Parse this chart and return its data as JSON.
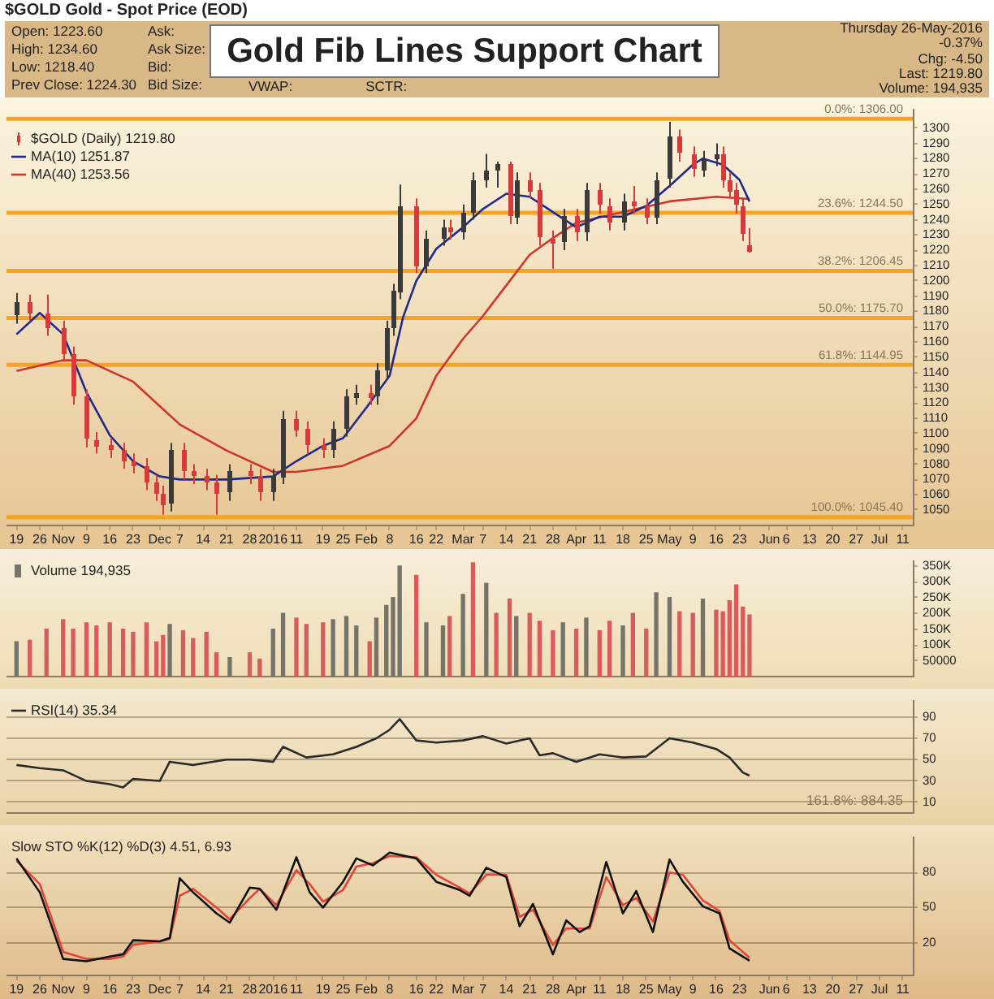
{
  "chart_data": [
    {
      "type": "candlestick",
      "title": "Gold Fib Lines Support Chart",
      "subtitle": "$GOLD Gold - Spot Price (EOD)",
      "annotations": [
        "Open: 1223.60",
        "High: 1234.60",
        "Low: 1218.40",
        "Prev Close: 1224.30",
        "Ask:",
        "Ask Size:",
        "Bid:",
        "Bid Size:",
        "VWAP:",
        "SCTR:",
        "Thursday 26-May-2016",
        "-0.37%",
        "Chg: -4.50",
        "Last: 1219.80",
        "Volume: 194,935"
      ],
      "series": [
        {
          "name": "$GOLD (Daily) 1219.80",
          "color": "#d63a3a",
          "colors": [
            "#3a3a3a",
            "#d63a3a",
            "#d63a3a",
            "#d63a3a",
            "#d63a3a",
            "#d63a3a",
            "#d63a3a",
            "#d63a3a",
            "#d63a3a",
            "#d63a3a",
            "#d63a3a",
            "#d63a3a",
            "#d63a3a",
            "#3a3a3a",
            "#d63a3a",
            "#d63a3a",
            "#d63a3a",
            "#d63a3a",
            "#3a3a3a",
            "#d63a3a",
            "#d63a3a",
            "#3a3a3a",
            "#3a3a3a",
            "#d63a3a",
            "#d63a3a",
            "#d63a3a",
            "#3a3a3a",
            "#3a3a3a",
            "#3a3a3a",
            "#d63a3a",
            "#3a3a3a",
            "#3a3a3a",
            "#3a3a3a",
            "#3a3a3a",
            "#d63a3a",
            "#3a3a3a",
            "#3a3a3a",
            "#d63a3a",
            "#3a3a3a",
            "#3a3a3a",
            "#3a3a3a",
            "#3a3a3a",
            "#d63a3a",
            "#3a3a3a",
            "#d63a3a",
            "#d63a3a",
            "#d63a3a",
            "#3a3a3a",
            "#d63a3a",
            "#3a3a3a",
            "#d63a3a",
            "#d63a3a",
            "#3a3a3a",
            "#d63a3a",
            "#d63a3a",
            "#3a3a3a",
            "#3a3a3a",
            "#d63a3a",
            "#d63a3a",
            "#3a3a3a",
            "#3a3a3a",
            "#d63a3a",
            "#d63a3a",
            "#d63a3a",
            "#d63a3a",
            "#d63a3a"
          ],
          "x": [
            "2015-10-19",
            "2015-10-23",
            "2015-10-28",
            "2015-11-02",
            "2015-11-05",
            "2015-11-09",
            "2015-11-12",
            "2015-11-16",
            "2015-11-20",
            "2015-11-23",
            "2015-11-27",
            "2015-11-30",
            "2015-12-02",
            "2015-12-04",
            "2015-12-08",
            "2015-12-11",
            "2015-12-15",
            "2015-12-18",
            "2015-12-22",
            "2015-12-28",
            "2015-12-31",
            "2016-01-04",
            "2016-01-07",
            "2016-01-11",
            "2016-01-14",
            "2016-01-19",
            "2016-01-22",
            "2016-01-26",
            "2016-01-29",
            "2016-02-02",
            "2016-02-04",
            "2016-02-07",
            "2016-02-09",
            "2016-02-11",
            "2016-02-16",
            "2016-02-19",
            "2016-02-24",
            "2016-02-26",
            "2016-03-01",
            "2016-03-04",
            "2016-03-08",
            "2016-03-11",
            "2016-03-15",
            "2016-03-17",
            "2016-03-21",
            "2016-03-24",
            "2016-03-28",
            "2016-03-31",
            "2016-04-04",
            "2016-04-07",
            "2016-04-11",
            "2016-04-14",
            "2016-04-18",
            "2016-04-21",
            "2016-04-25",
            "2016-04-28",
            "2016-05-02",
            "2016-05-05",
            "2016-05-09",
            "2016-05-12",
            "2016-05-16",
            "2016-05-18",
            "2016-05-20",
            "2016-05-22",
            "2016-05-24",
            "2016-05-26"
          ],
          "ohlc": [
            [
              1178,
              1192,
              1172,
              1186
            ],
            [
              1186,
              1191,
              1174,
              1179
            ],
            [
              1179,
              1191,
              1164,
              1169
            ],
            [
              1169,
              1174,
              1147,
              1152
            ],
            [
              1152,
              1157,
              1119,
              1124
            ],
            [
              1124,
              1129,
              1091,
              1096
            ],
            [
              1096,
              1101,
              1087,
              1092
            ],
            [
              1092,
              1097,
              1084,
              1089
            ],
            [
              1089,
              1094,
              1077,
              1082
            ],
            [
              1082,
              1087,
              1074,
              1079
            ],
            [
              1079,
              1084,
              1063,
              1068
            ],
            [
              1068,
              1073,
              1056,
              1061
            ],
            [
              1061,
              1066,
              1047,
              1054
            ],
            [
              1054,
              1094,
              1049,
              1089
            ],
            [
              1089,
              1094,
              1070,
              1075
            ],
            [
              1075,
              1080,
              1067,
              1072
            ],
            [
              1072,
              1077,
              1063,
              1068
            ],
            [
              1068,
              1073,
              1047,
              1061
            ],
            [
              1061,
              1080,
              1056,
              1075
            ],
            [
              1075,
              1080,
              1067,
              1072
            ],
            [
              1072,
              1077,
              1056,
              1061
            ],
            [
              1061,
              1077,
              1056,
              1072
            ],
            [
              1072,
              1115,
              1067,
              1110
            ],
            [
              1110,
              1115,
              1098,
              1103
            ],
            [
              1103,
              1108,
              1087,
              1092
            ],
            [
              1092,
              1097,
              1084,
              1089
            ],
            [
              1089,
              1108,
              1084,
              1103
            ],
            [
              1103,
              1129,
              1098,
              1124
            ],
            [
              1124,
              1132,
              1119,
              1127
            ],
            [
              1127,
              1132,
              1119,
              1124
            ],
            [
              1124,
              1146,
              1119,
              1141
            ],
            [
              1141,
              1174,
              1136,
              1169
            ],
            [
              1169,
              1198,
              1164,
              1193
            ],
            [
              1193,
              1263,
              1188,
              1249
            ],
            [
              1249,
              1254,
              1205,
              1210
            ],
            [
              1210,
              1233,
              1205,
              1228
            ],
            [
              1228,
              1240,
              1223,
              1235
            ],
            [
              1235,
              1240,
              1227,
              1232
            ],
            [
              1232,
              1250,
              1227,
              1245
            ],
            [
              1245,
              1271,
              1240,
              1266
            ],
            [
              1266,
              1283,
              1261,
              1272
            ],
            [
              1272,
              1278,
              1261,
              1276
            ],
            [
              1276,
              1278,
              1237,
              1242
            ],
            [
              1242,
              1271,
              1237,
              1266
            ],
            [
              1266,
              1271,
              1254,
              1259
            ],
            [
              1259,
              1264,
              1223,
              1228
            ],
            [
              1228,
              1233,
              1208,
              1225
            ],
            [
              1225,
              1247,
              1220,
              1242
            ],
            [
              1242,
              1247,
              1226,
              1231
            ],
            [
              1231,
              1264,
              1226,
              1259
            ],
            [
              1259,
              1264,
              1244,
              1249
            ],
            [
              1249,
              1254,
              1233,
              1238
            ],
            [
              1238,
              1257,
              1233,
              1252
            ],
            [
              1252,
              1262,
              1244,
              1249
            ],
            [
              1249,
              1254,
              1237,
              1242
            ],
            [
              1242,
              1271,
              1237,
              1266
            ],
            [
              1266,
              1304,
              1261,
              1294
            ],
            [
              1294,
              1299,
              1278,
              1283
            ],
            [
              1283,
              1288,
              1268,
              1273
            ],
            [
              1273,
              1285,
              1268,
              1280
            ],
            [
              1280,
              1290,
              1275,
              1283
            ],
            [
              1283,
              1288,
              1261,
              1266
            ],
            [
              1266,
              1271,
              1254,
              1259
            ],
            [
              1259,
              1264,
              1244,
              1249
            ],
            [
              1249,
              1254,
              1226,
              1231
            ],
            [
              1223.6,
              1234.6,
              1218.4,
              1219.8
            ]
          ]
        },
        {
          "type": "line",
          "name": "MA(10) 1251.87",
          "color": "#1f2a8a",
          "x": [
            "2015-10-19",
            "2015-10-26",
            "2015-11-02",
            "2015-11-09",
            "2015-11-16",
            "2015-11-23",
            "2015-12-01",
            "2015-12-07",
            "2015-12-21",
            "2016-01-04",
            "2016-01-11",
            "2016-01-19",
            "2016-01-25",
            "2016-02-01",
            "2016-02-08",
            "2016-02-12",
            "2016-02-16",
            "2016-02-22",
            "2016-03-01",
            "2016-03-07",
            "2016-03-14",
            "2016-03-21",
            "2016-03-28",
            "2016-04-04",
            "2016-04-11",
            "2016-04-18",
            "2016-04-25",
            "2016-05-02",
            "2016-05-09",
            "2016-05-12",
            "2016-05-18",
            "2016-05-23",
            "2016-05-26"
          ],
          "values": [
            1165,
            1179,
            1165,
            1127,
            1099,
            1082,
            1072,
            1070,
            1070,
            1072,
            1082,
            1092,
            1097,
            1117,
            1138,
            1176,
            1200,
            1221,
            1235,
            1247,
            1257,
            1255,
            1245,
            1235,
            1242,
            1242,
            1249,
            1262,
            1276,
            1280,
            1276,
            1266,
            1251.87
          ]
        },
        {
          "type": "line",
          "name": "MA(40) 1253.56",
          "color": "#d0352b",
          "x": [
            "2015-10-19",
            "2015-11-02",
            "2015-11-09",
            "2015-11-23",
            "2015-12-07",
            "2015-12-21",
            "2016-01-04",
            "2016-01-11",
            "2016-01-25",
            "2016-02-08",
            "2016-02-16",
            "2016-02-22",
            "2016-03-01",
            "2016-03-07",
            "2016-03-14",
            "2016-03-21",
            "2016-03-28",
            "2016-04-04",
            "2016-04-18",
            "2016-05-02",
            "2016-05-16",
            "2016-05-26"
          ],
          "values": [
            1141,
            1148,
            1148,
            1134,
            1106,
            1089,
            1075,
            1075,
            1079,
            1092,
            1110,
            1138,
            1162,
            1177,
            1197,
            1217,
            1228,
            1238,
            1245,
            1252,
            1255,
            1253.56
          ]
        }
      ],
      "xlim": [
        "2015-10-16",
        "2016-07-14"
      ],
      "xticks": [
        {
          "value": "2015-10-19",
          "label": "19"
        },
        {
          "value": "2015-10-26",
          "label": "26"
        },
        {
          "value": "2015-11-02",
          "label": "Nov"
        },
        {
          "value": "2015-11-09",
          "label": "9"
        },
        {
          "value": "2015-11-16",
          "label": "16"
        },
        {
          "value": "2015-11-23",
          "label": "23"
        },
        {
          "value": "2015-12-01",
          "label": "Dec"
        },
        {
          "value": "2015-12-07",
          "label": "7"
        },
        {
          "value": "2015-12-14",
          "label": "14"
        },
        {
          "value": "2015-12-21",
          "label": "21"
        },
        {
          "value": "2015-12-28",
          "label": "28"
        },
        {
          "value": "2016-01-04",
          "label": "2016"
        },
        {
          "value": "2016-01-11",
          "label": "11"
        },
        {
          "value": "2016-01-19",
          "label": "19"
        },
        {
          "value": "2016-01-25",
          "label": "25"
        },
        {
          "value": "2016-02-01",
          "label": "Feb"
        },
        {
          "value": "2016-02-08",
          "label": "8"
        },
        {
          "value": "2016-02-16",
          "label": "16"
        },
        {
          "value": "2016-02-22",
          "label": "22"
        },
        {
          "value": "2016-03-01",
          "label": "Mar"
        },
        {
          "value": "2016-03-07",
          "label": "7"
        },
        {
          "value": "2016-03-14",
          "label": "14"
        },
        {
          "value": "2016-03-21",
          "label": "21"
        },
        {
          "value": "2016-03-28",
          "label": "28"
        },
        {
          "value": "2016-04-04",
          "label": "Apr"
        },
        {
          "value": "2016-04-11",
          "label": "11"
        },
        {
          "value": "2016-04-18",
          "label": "18"
        },
        {
          "value": "2016-04-25",
          "label": "25"
        },
        {
          "value": "2016-05-02",
          "label": "May"
        },
        {
          "value": "2016-05-09",
          "label": "9"
        },
        {
          "value": "2016-05-16",
          "label": "16"
        },
        {
          "value": "2016-05-23",
          "label": "23"
        },
        {
          "value": "2016-06-01",
          "label": "Jun"
        },
        {
          "value": "2016-06-06",
          "label": "6"
        },
        {
          "value": "2016-06-13",
          "label": "13"
        },
        {
          "value": "2016-06-20",
          "label": "20"
        },
        {
          "value": "2016-06-27",
          "label": "27"
        },
        {
          "value": "2016-07-04",
          "label": "Jul"
        },
        {
          "value": "2016-07-11",
          "label": "11"
        }
      ],
      "ylim": [
        1040,
        1312
      ],
      "yticks": [
        1050,
        1060,
        1070,
        1080,
        1090,
        1100,
        1110,
        1120,
        1130,
        1140,
        1150,
        1160,
        1170,
        1180,
        1190,
        1200,
        1210,
        1220,
        1230,
        1240,
        1250,
        1260,
        1270,
        1280,
        1290,
        1300
      ],
      "ref_lines": [
        {
          "axis": "y",
          "value": 1306,
          "label": "0.0%: 1306.00",
          "color": "#f5a423"
        },
        {
          "axis": "y",
          "value": 1244.5,
          "label": "23.6%: 1244.50",
          "color": "#f5a423"
        },
        {
          "axis": "y",
          "value": 1206.45,
          "label": "38.2%: 1206.45",
          "color": "#f5a423"
        },
        {
          "axis": "y",
          "value": 1175.7,
          "label": "50.0%: 1175.70",
          "color": "#f5a423"
        },
        {
          "axis": "y",
          "value": 1144.95,
          "label": "61.8%: 1144.95",
          "color": "#f5a423"
        },
        {
          "axis": "y",
          "value": 1045.4,
          "label": "100.0%: 1045.40",
          "color": "#f5a423"
        }
      ],
      "legend": "top left",
      "tick_labels": "xy"
    },
    {
      "type": "bar",
      "series": [
        {
          "name": "Volume 194,935",
          "color": "#767468",
          "x": [
            "2015-10-19",
            "2015-10-23",
            "2015-10-28",
            "2015-11-02",
            "2015-11-05",
            "2015-11-09",
            "2015-11-12",
            "2015-11-16",
            "2015-11-20",
            "2015-11-23",
            "2015-11-27",
            "2015-11-30",
            "2015-12-02",
            "2015-12-04",
            "2015-12-08",
            "2015-12-11",
            "2015-12-15",
            "2015-12-18",
            "2015-12-22",
            "2015-12-28",
            "2015-12-31",
            "2016-01-04",
            "2016-01-07",
            "2016-01-11",
            "2016-01-14",
            "2016-01-19",
            "2016-01-22",
            "2016-01-26",
            "2016-01-29",
            "2016-02-02",
            "2016-02-04",
            "2016-02-07",
            "2016-02-09",
            "2016-02-11",
            "2016-02-16",
            "2016-02-19",
            "2016-02-24",
            "2016-02-26",
            "2016-03-01",
            "2016-03-04",
            "2016-03-08",
            "2016-03-11",
            "2016-03-15",
            "2016-03-17",
            "2016-03-21",
            "2016-03-24",
            "2016-03-28",
            "2016-03-31",
            "2016-04-04",
            "2016-04-07",
            "2016-04-11",
            "2016-04-14",
            "2016-04-18",
            "2016-04-21",
            "2016-04-25",
            "2016-04-28",
            "2016-05-02",
            "2016-05-05",
            "2016-05-09",
            "2016-05-12",
            "2016-05-16",
            "2016-05-18",
            "2016-05-20",
            "2016-05-22",
            "2016-05-24",
            "2016-05-26"
          ],
          "values": [
            110000,
            115000,
            150000,
            180000,
            150000,
            170000,
            160000,
            170000,
            150000,
            140000,
            170000,
            110000,
            130000,
            165000,
            145000,
            120000,
            140000,
            75000,
            60000,
            75000,
            55000,
            150000,
            200000,
            185000,
            165000,
            170000,
            180000,
            190000,
            160000,
            110000,
            185000,
            225000,
            250000,
            350000,
            320000,
            170000,
            160000,
            190000,
            260000,
            360000,
            295000,
            200000,
            245000,
            190000,
            200000,
            175000,
            145000,
            170000,
            150000,
            185000,
            145000,
            175000,
            160000,
            200000,
            150000,
            265000,
            250000,
            205000,
            200000,
            245000,
            210000,
            205000,
            240000,
            290000,
            220000,
            195000
          ],
          "colors": [
            "#767468",
            "#d85c5c",
            "#d85c5c",
            "#d85c5c",
            "#d85c5c",
            "#d85c5c",
            "#d85c5c",
            "#d85c5c",
            "#d85c5c",
            "#d85c5c",
            "#d85c5c",
            "#d85c5c",
            "#d85c5c",
            "#767468",
            "#d85c5c",
            "#d85c5c",
            "#d85c5c",
            "#d85c5c",
            "#767468",
            "#d85c5c",
            "#d85c5c",
            "#767468",
            "#767468",
            "#d85c5c",
            "#d85c5c",
            "#d85c5c",
            "#767468",
            "#767468",
            "#767468",
            "#d85c5c",
            "#767468",
            "#767468",
            "#767468",
            "#767468",
            "#d85c5c",
            "#767468",
            "#767468",
            "#d85c5c",
            "#767468",
            "#d85c5c",
            "#767468",
            "#d85c5c",
            "#d85c5c",
            "#767468",
            "#d85c5c",
            "#d85c5c",
            "#d85c5c",
            "#767468",
            "#d85c5c",
            "#767468",
            "#d85c5c",
            "#d85c5c",
            "#767468",
            "#d85c5c",
            "#d85c5c",
            "#767468",
            "#767468",
            "#d85c5c",
            "#d85c5c",
            "#767468",
            "#d85c5c",
            "#d85c5c",
            "#d85c5c",
            "#d85c5c",
            "#d85c5c",
            "#d85c5c"
          ]
        }
      ],
      "xlim": [
        "2015-10-16",
        "2016-07-14"
      ],
      "ylim": [
        0,
        365000
      ],
      "yticks": [
        {
          "value": 50000,
          "label": "50000"
        },
        {
          "value": 100000,
          "label": "100K"
        },
        {
          "value": 150000,
          "label": "150K"
        },
        {
          "value": 200000,
          "label": "200K"
        },
        {
          "value": 250000,
          "label": "250K"
        },
        {
          "value": 300000,
          "label": "300K"
        },
        {
          "value": 350000,
          "label": "350K"
        }
      ],
      "legend": "top left",
      "tick_labels": "y"
    },
    {
      "type": "line",
      "series": [
        {
          "name": "RSI(14) 35.34",
          "color": "#2b2b2b",
          "x": [
            "2015-10-19",
            "2015-10-26",
            "2015-11-02",
            "2015-11-09",
            "2015-11-16",
            "2015-11-20",
            "2015-11-23",
            "2015-12-01",
            "2015-12-04",
            "2015-12-11",
            "2015-12-21",
            "2015-12-28",
            "2016-01-04",
            "2016-01-07",
            "2016-01-14",
            "2016-01-22",
            "2016-01-29",
            "2016-02-04",
            "2016-02-08",
            "2016-02-11",
            "2016-02-16",
            "2016-02-22",
            "2016-03-01",
            "2016-03-07",
            "2016-03-14",
            "2016-03-21",
            "2016-03-24",
            "2016-03-28",
            "2016-04-04",
            "2016-04-11",
            "2016-04-18",
            "2016-04-25",
            "2016-05-02",
            "2016-05-09",
            "2016-05-16",
            "2016-05-20",
            "2016-05-24",
            "2016-05-26"
          ],
          "values": [
            45,
            42,
            40,
            30,
            27,
            24,
            32,
            30,
            48,
            45,
            50,
            50,
            48,
            62,
            52,
            55,
            62,
            70,
            78,
            88,
            68,
            66,
            68,
            72,
            65,
            70,
            54,
            56,
            48,
            55,
            52,
            53,
            70,
            66,
            60,
            52,
            38,
            35
          ]
        }
      ],
      "annotations": [
        "161.8%: 884.35"
      ],
      "xlim": [
        "2015-10-16",
        "2016-07-14"
      ],
      "ylim": [
        0,
        105
      ],
      "yticks": [
        10,
        30,
        50,
        70,
        90
      ],
      "grid": "y",
      "legend": "top left",
      "tick_labels": "y"
    },
    {
      "type": "line",
      "series": [
        {
          "color": "#111111",
          "x": [
            "2015-10-19",
            "2015-10-26",
            "2015-11-02",
            "2015-11-09",
            "2015-11-16",
            "2015-11-20",
            "2015-11-23",
            "2015-12-01",
            "2015-12-04",
            "2015-12-07",
            "2015-12-11",
            "2015-12-18",
            "2015-12-22",
            "2015-12-28",
            "2015-12-31",
            "2016-01-05",
            "2016-01-11",
            "2016-01-15",
            "2016-01-19",
            "2016-01-25",
            "2016-01-29",
            "2016-02-03",
            "2016-02-08",
            "2016-02-16",
            "2016-02-22",
            "2016-02-29",
            "2016-03-03",
            "2016-03-08",
            "2016-03-14",
            "2016-03-18",
            "2016-03-22",
            "2016-03-28",
            "2016-04-01",
            "2016-04-05",
            "2016-04-08",
            "2016-04-13",
            "2016-04-18",
            "2016-04-22",
            "2016-04-27",
            "2016-05-02",
            "2016-05-06",
            "2016-05-12",
            "2016-05-17",
            "2016-05-20",
            "2016-05-24",
            "2016-05-26"
          ],
          "values": [
            92,
            63,
            6,
            4,
            8,
            10,
            22,
            21,
            24,
            75,
            63,
            45,
            37,
            67,
            66,
            48,
            93,
            63,
            50,
            72,
            92,
            86,
            97,
            92,
            72,
            65,
            60,
            84,
            76,
            34,
            53,
            10,
            39,
            29,
            34,
            89,
            45,
            64,
            29,
            91,
            72,
            51,
            45,
            15,
            8,
            4.5
          ]
        },
        {
          "color": "#e0453a",
          "x": [
            "2015-10-19",
            "2015-10-26",
            "2015-11-02",
            "2015-11-09",
            "2015-11-16",
            "2015-11-20",
            "2015-11-23",
            "2015-12-01",
            "2015-12-04",
            "2015-12-07",
            "2015-12-11",
            "2015-12-18",
            "2015-12-22",
            "2015-12-28",
            "2015-12-31",
            "2016-01-05",
            "2016-01-11",
            "2016-01-15",
            "2016-01-19",
            "2016-01-25",
            "2016-01-29",
            "2016-02-03",
            "2016-02-08",
            "2016-02-16",
            "2016-02-22",
            "2016-02-29",
            "2016-03-03",
            "2016-03-08",
            "2016-03-14",
            "2016-03-18",
            "2016-03-22",
            "2016-03-28",
            "2016-04-01",
            "2016-04-05",
            "2016-04-08",
            "2016-04-13",
            "2016-04-18",
            "2016-04-22",
            "2016-04-27",
            "2016-05-02",
            "2016-05-06",
            "2016-05-12",
            "2016-05-17",
            "2016-05-20",
            "2016-05-24",
            "2016-05-26"
          ],
          "values": [
            90,
            70,
            12,
            6,
            6,
            8,
            18,
            21,
            23,
            60,
            66,
            50,
            40,
            58,
            66,
            52,
            82,
            70,
            55,
            65,
            85,
            88,
            94,
            93,
            78,
            67,
            62,
            78,
            78,
            42,
            48,
            18,
            32,
            32,
            32,
            76,
            52,
            58,
            38,
            80,
            78,
            56,
            47,
            22,
            12,
            7
          ]
        }
      ],
      "annotations": [
        "Slow STO %K(12) %D(3) 4.51, 6.93"
      ],
      "xlim": [
        "2015-10-16",
        "2016-07-14"
      ],
      "xticks": [
        {
          "value": "2015-10-19",
          "label": "19"
        },
        {
          "value": "2015-10-26",
          "label": "26"
        },
        {
          "value": "2015-11-02",
          "label": "Nov"
        },
        {
          "value": "2015-11-09",
          "label": "9"
        },
        {
          "value": "2015-11-16",
          "label": "16"
        },
        {
          "value": "2015-11-23",
          "label": "23"
        },
        {
          "value": "2015-12-01",
          "label": "Dec"
        },
        {
          "value": "2015-12-07",
          "label": "7"
        },
        {
          "value": "2015-12-14",
          "label": "14"
        },
        {
          "value": "2015-12-21",
          "label": "21"
        },
        {
          "value": "2015-12-28",
          "label": "28"
        },
        {
          "value": "2016-01-04",
          "label": "2016"
        },
        {
          "value": "2016-01-11",
          "label": "11"
        },
        {
          "value": "2016-01-19",
          "label": "19"
        },
        {
          "value": "2016-01-25",
          "label": "25"
        },
        {
          "value": "2016-02-01",
          "label": "Feb"
        },
        {
          "value": "2016-02-08",
          "label": "8"
        },
        {
          "value": "2016-02-16",
          "label": "16"
        },
        {
          "value": "2016-02-22",
          "label": "22"
        },
        {
          "value": "2016-03-01",
          "label": "Mar"
        },
        {
          "value": "2016-03-07",
          "label": "7"
        },
        {
          "value": "2016-03-14",
          "label": "14"
        },
        {
          "value": "2016-03-21",
          "label": "21"
        },
        {
          "value": "2016-03-28",
          "label": "28"
        },
        {
          "value": "2016-04-04",
          "label": "Apr"
        },
        {
          "value": "2016-04-11",
          "label": "11"
        },
        {
          "value": "2016-04-18",
          "label": "18"
        },
        {
          "value": "2016-04-25",
          "label": "25"
        },
        {
          "value": "2016-05-02",
          "label": "May"
        },
        {
          "value": "2016-05-09",
          "label": "9"
        },
        {
          "value": "2016-05-16",
          "label": "16"
        },
        {
          "value": "2016-05-23",
          "label": "23"
        },
        {
          "value": "2016-06-01",
          "label": "Jun"
        },
        {
          "value": "2016-06-06",
          "label": "6"
        },
        {
          "value": "2016-06-13",
          "label": "13"
        },
        {
          "value": "2016-06-20",
          "label": "20"
        },
        {
          "value": "2016-06-27",
          "label": "27"
        },
        {
          "value": "2016-07-04",
          "label": "Jul"
        },
        {
          "value": "2016-07-11",
          "label": "11"
        }
      ],
      "ylim": [
        -8,
        110
      ],
      "yticks": [
        20,
        50,
        80
      ],
      "grid": "y"
    }
  ]
}
